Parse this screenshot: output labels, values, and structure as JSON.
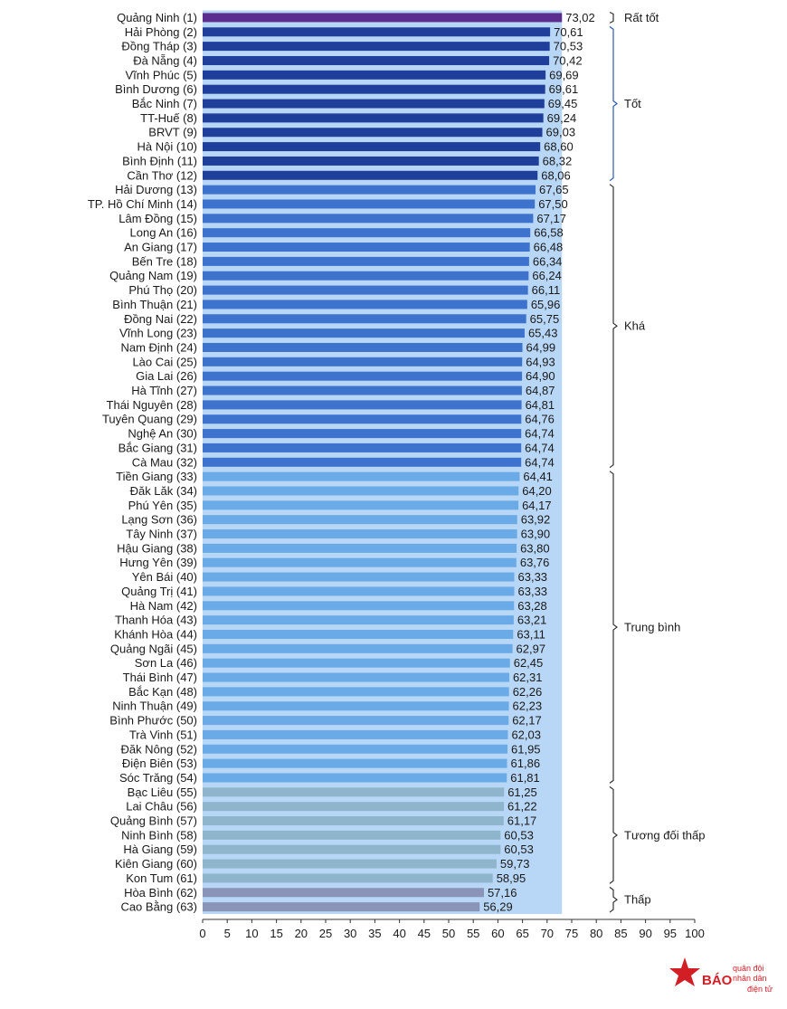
{
  "chart_data": {
    "type": "bar",
    "orientation": "horizontal",
    "categories": [
      "Quảng Ninh (1)",
      "Hải Phòng (2)",
      "Đồng Tháp (3)",
      "Đà Nẵng (4)",
      "Vĩnh Phúc (5)",
      "Bình Dương (6)",
      "Bắc Ninh (7)",
      "TT-Huế (8)",
      "BRVT (9)",
      "Hà Nội (10)",
      "Bình Định (11)",
      "Cần Thơ (12)",
      "Hải Dương (13)",
      "TP. Hồ Chí Minh (14)",
      "Lâm Đồng (15)",
      "Long An (16)",
      "An Giang (17)",
      "Bến Tre (18)",
      "Quảng Nam (19)",
      "Phú Thọ (20)",
      "Bình Thuận (21)",
      "Đồng Nai (22)",
      "Vĩnh Long (23)",
      "Nam Định (24)",
      "Lào Cai (25)",
      "Gia Lai (26)",
      "Hà Tĩnh (27)",
      "Thái Nguyên (28)",
      "Tuyên Quang (29)",
      "Nghệ An (30)",
      "Bắc Giang (31)",
      "Cà Mau (32)",
      "Tiền Giang (33)",
      "Đăk Lăk (34)",
      "Phú Yên (35)",
      "Lạng Sơn (36)",
      "Tây Ninh (37)",
      "Hậu Giang (38)",
      "Hưng Yên (39)",
      "Yên Bái (40)",
      "Quảng Trị (41)",
      "Hà Nam (42)",
      "Thanh Hóa (43)",
      "Khánh Hòa (44)",
      "Quảng Ngãi (45)",
      "Sơn La (46)",
      "Thái Bình (47)",
      "Bắc Kạn (48)",
      "Ninh Thuận (49)",
      "Bình Phước (50)",
      "Trà Vinh (51)",
      "Đăk Nông (52)",
      "Điện Biên (53)",
      "Sóc Trăng (54)",
      "Bạc Liêu (55)",
      "Lai Châu (56)",
      "Quảng Bình (57)",
      "Ninh Bình (58)",
      "Hà Giang (59)",
      "Kiên Giang (60)",
      "Kon Tum (61)",
      "Hòa Bình (62)",
      "Cao Bằng (63)"
    ],
    "values": [
      73.02,
      70.61,
      70.53,
      70.42,
      69.69,
      69.61,
      69.45,
      69.24,
      69.03,
      68.6,
      68.32,
      68.06,
      67.65,
      67.5,
      67.17,
      66.58,
      66.48,
      66.34,
      66.24,
      66.11,
      65.96,
      65.75,
      65.43,
      64.99,
      64.93,
      64.9,
      64.87,
      64.81,
      64.76,
      64.74,
      64.74,
      64.74,
      64.41,
      64.2,
      64.17,
      63.92,
      63.9,
      63.8,
      63.76,
      63.33,
      63.33,
      63.28,
      63.21,
      63.11,
      62.97,
      62.45,
      62.31,
      62.26,
      62.23,
      62.17,
      62.03,
      61.95,
      61.86,
      61.81,
      61.25,
      61.22,
      61.17,
      60.53,
      60.53,
      59.73,
      58.95,
      57.16,
      56.29
    ],
    "value_labels": [
      "73,02",
      "70,61",
      "70,53",
      "70,42",
      "69,69",
      "69,61",
      "69,45",
      "69,24",
      "69,03",
      "68,60",
      "68,32",
      "68,06",
      "67,65",
      "67,50",
      "67,17",
      "66,58",
      "66,48",
      "66,34",
      "66,24",
      "66,11",
      "65,96",
      "65,75",
      "65,43",
      "64,99",
      "64,93",
      "64,90",
      "64,87",
      "64,81",
      "64,76",
      "64,74",
      "64,74",
      "64,74",
      "64,41",
      "64,20",
      "64,17",
      "63,92",
      "63,90",
      "63,80",
      "63,76",
      "63,33",
      "63,33",
      "63,28",
      "63,21",
      "63,11",
      "62,97",
      "62,45",
      "62,31",
      "62,26",
      "62,23",
      "62,17",
      "62,03",
      "61,95",
      "61,86",
      "61,81",
      "61,25",
      "61,22",
      "61,17",
      "60,53",
      "60,53",
      "59,73",
      "58,95",
      "57,16",
      "56,29"
    ],
    "groups": [
      {
        "label": "Rất tốt",
        "start": 0,
        "end": 0,
        "color": "#5b2d8e"
      },
      {
        "label": "Tốt",
        "start": 1,
        "end": 11,
        "color": "#1f3f9a"
      },
      {
        "label": "Khá",
        "start": 12,
        "end": 31,
        "color": "#3d73cc"
      },
      {
        "label": "Trung bình",
        "start": 32,
        "end": 53,
        "color": "#6aaae6"
      },
      {
        "label": "Tương đối thấp",
        "start": 54,
        "end": 60,
        "color": "#8fb5cc"
      },
      {
        "label": "Thấp",
        "start": 61,
        "end": 62,
        "color": "#8a94b8"
      }
    ],
    "bracket_colors": [
      "#333333",
      "#2a5bb5",
      "#333333",
      "#333333",
      "#333333",
      "#333333"
    ],
    "background_band_color": "#b8d6f5",
    "background_band_value": 73.02,
    "xlim": [
      0,
      100
    ],
    "xticks": [
      0,
      5,
      10,
      15,
      20,
      25,
      30,
      35,
      40,
      45,
      50,
      55,
      60,
      65,
      70,
      75,
      80,
      85,
      90,
      95,
      100
    ],
    "title": "",
    "xlabel": "",
    "ylabel": "",
    "grid": false
  },
  "logo": {
    "text_main": "BÁO",
    "text_top": "quân đội",
    "text_mid": "nhân dân",
    "text_bottom": "điện tử",
    "color": "#d21f26"
  }
}
